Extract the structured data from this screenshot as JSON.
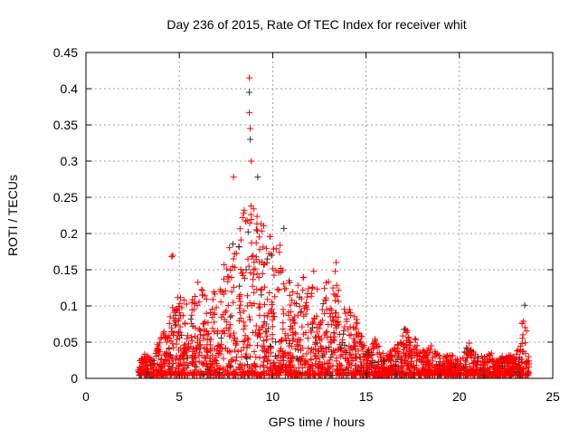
{
  "chart_data": {
    "type": "scatter",
    "title": "Day 236 of 2015, Rate Of TEC Index for receiver whit",
    "xlabel": "GPS time / hours",
    "ylabel": "ROTI / TECUs",
    "xlim": [
      0,
      25
    ],
    "ylim": [
      0,
      0.45
    ],
    "xticks": [
      "0",
      "5",
      "10",
      "15",
      "20",
      "25"
    ],
    "yticks": [
      "0",
      "0.05",
      "0.1",
      "0.15",
      "0.2",
      "0.25",
      "0.3",
      "0.35",
      "0.4",
      "0.45"
    ],
    "grid": true,
    "marker": "+",
    "colors": {
      "primary": "#ff0000",
      "secondary": "#303030",
      "grid": "#a0a0a0"
    },
    "envelope_note": "max ROTI per time bin (hours, TECU)",
    "envelope": [
      [
        2.8,
        0.02
      ],
      [
        3.0,
        0.035
      ],
      [
        3.5,
        0.03
      ],
      [
        4.0,
        0.06
      ],
      [
        4.5,
        0.09
      ],
      [
        5.0,
        0.12
      ],
      [
        5.5,
        0.1
      ],
      [
        6.0,
        0.14
      ],
      [
        6.5,
        0.11
      ],
      [
        7.0,
        0.13
      ],
      [
        7.5,
        0.17
      ],
      [
        8.0,
        0.2
      ],
      [
        8.5,
        0.25
      ],
      [
        9.0,
        0.24
      ],
      [
        9.5,
        0.22
      ],
      [
        10.0,
        0.19
      ],
      [
        10.5,
        0.2
      ],
      [
        11.0,
        0.12
      ],
      [
        11.5,
        0.14
      ],
      [
        12.0,
        0.15
      ],
      [
        12.5,
        0.12
      ],
      [
        13.0,
        0.14
      ],
      [
        13.5,
        0.16
      ],
      [
        14.0,
        0.1
      ],
      [
        14.5,
        0.09
      ],
      [
        15.0,
        0.04
      ],
      [
        15.5,
        0.055
      ],
      [
        16.0,
        0.03
      ],
      [
        16.5,
        0.045
      ],
      [
        17.0,
        0.07
      ],
      [
        17.5,
        0.06
      ],
      [
        18.0,
        0.04
      ],
      [
        18.5,
        0.045
      ],
      [
        19.0,
        0.03
      ],
      [
        19.5,
        0.035
      ],
      [
        20.0,
        0.025
      ],
      [
        20.5,
        0.05
      ],
      [
        21.0,
        0.03
      ],
      [
        21.5,
        0.04
      ],
      [
        22.0,
        0.03
      ],
      [
        22.5,
        0.035
      ],
      [
        23.0,
        0.03
      ],
      [
        23.5,
        0.1
      ],
      [
        23.75,
        0.02
      ]
    ],
    "outliers": [
      [
        8.75,
        0.415
      ],
      [
        8.75,
        0.395
      ],
      [
        8.75,
        0.367
      ],
      [
        8.8,
        0.345
      ],
      [
        8.8,
        0.33
      ],
      [
        8.85,
        0.3
      ],
      [
        7.9,
        0.278
      ],
      [
        9.2,
        0.278
      ],
      [
        4.6,
        0.168
      ],
      [
        4.65,
        0.17
      ],
      [
        10.6,
        0.207
      ],
      [
        12.2,
        0.148
      ],
      [
        13.4,
        0.16
      ],
      [
        23.5,
        0.101
      ]
    ]
  }
}
